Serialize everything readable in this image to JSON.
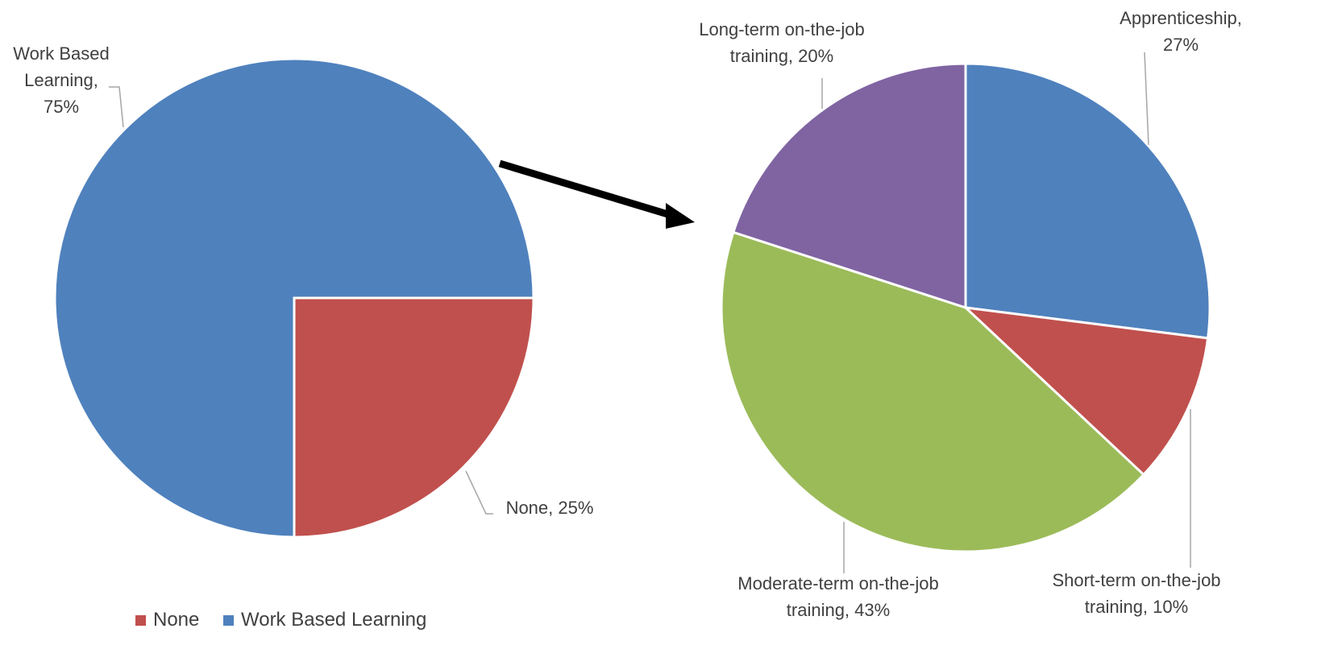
{
  "chart_data": [
    {
      "type": "pie",
      "categories": [
        "None",
        "Work Based Learning"
      ],
      "values": [
        25,
        75
      ],
      "value_labels": [
        "None, 25%",
        "Work Based Learning, 75%"
      ],
      "colors": [
        "#c0504d",
        "#4f81bd"
      ],
      "legend": "bottom"
    },
    {
      "type": "pie",
      "categories": [
        "Apprenticeship",
        "Short-term on-the-job training",
        "Moderate-term on-the-job training",
        "Long-term on-the-job training"
      ],
      "values": [
        27,
        10,
        43,
        20
      ],
      "value_labels": [
        "Apprenticeship, 27%",
        "Short-term on-the-job training, 10%",
        "Moderate-term on-the-job training, 43%",
        "Long-term on-the-job training, 20%"
      ],
      "colors": [
        "#4f81bd",
        "#c0504d",
        "#9bbb59",
        "#8064a2"
      ]
    }
  ]
}
